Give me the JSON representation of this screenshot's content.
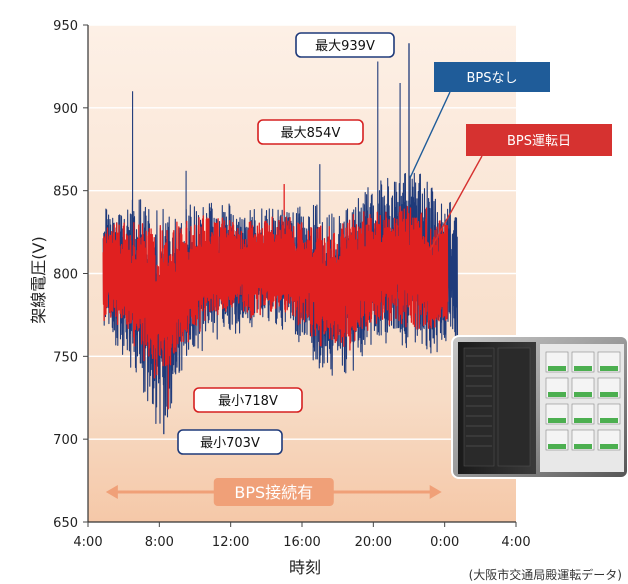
{
  "chart_data": {
    "type": "line",
    "xlabel": "時刻",
    "ylabel": "架線電圧(V)",
    "ylim": [
      650,
      950
    ],
    "yticks": [
      650,
      700,
      750,
      800,
      850,
      900,
      950
    ],
    "x_ticks": [
      "4:00",
      "8:00",
      "12:00",
      "16:00",
      "20:00",
      "0:00",
      "4:00"
    ],
    "grid": true,
    "source_note": "(大阪市交通局殿運転データ)",
    "series": [
      {
        "name": "BPSなし",
        "color": "#1f3a7a",
        "x": [
          "5:00",
          "6:00",
          "7:00",
          "8:00",
          "9:00",
          "10:00",
          "11:00",
          "12:00",
          "13:00",
          "14:00",
          "15:00",
          "16:00",
          "17:00",
          "18:00",
          "19:00",
          "20:00",
          "21:00",
          "22:00",
          "23:00",
          "0:00"
        ],
        "upper": [
          842,
          840,
          848,
          836,
          838,
          842,
          845,
          838,
          836,
          838,
          842,
          842,
          838,
          836,
          848,
          852,
          860,
          864,
          858,
          842
        ],
        "lower": [
          760,
          752,
          728,
          706,
          730,
          752,
          760,
          768,
          766,
          770,
          768,
          760,
          745,
          736,
          748,
          758,
          760,
          756,
          752,
          760
        ],
        "peak": {
          "x": "22:00",
          "y": 939
        },
        "trough": {
          "x": "8:15",
          "y": 703
        }
      },
      {
        "name": "BPS運転日",
        "color": "#e02020",
        "x": [
          "5:00",
          "6:00",
          "7:00",
          "8:00",
          "9:00",
          "10:00",
          "11:00",
          "12:00",
          "13:00",
          "14:00",
          "15:00",
          "16:00",
          "17:00",
          "18:00",
          "19:00",
          "20:00",
          "21:00",
          "22:00",
          "23:00",
          "0:00"
        ],
        "upper": [
          828,
          830,
          828,
          826,
          828,
          832,
          836,
          830,
          828,
          830,
          832,
          832,
          828,
          828,
          834,
          836,
          838,
          840,
          838,
          830
        ],
        "lower": [
          772,
          770,
          750,
          730,
          748,
          765,
          772,
          778,
          776,
          778,
          776,
          770,
          758,
          750,
          760,
          770,
          772,
          770,
          766,
          770
        ],
        "peak": {
          "x": "15:00",
          "y": 854
        },
        "trough": {
          "x": "8:30",
          "y": 718
        }
      }
    ],
    "annotations": [
      {
        "text": "最大939V",
        "style": "navy-box"
      },
      {
        "text": "最大854V",
        "style": "red-box"
      },
      {
        "text": "最小718V",
        "style": "red-box"
      },
      {
        "text": "最小703V",
        "style": "navy-box"
      }
    ],
    "legend": [
      {
        "text": "BPSなし",
        "color": "#1f5c99"
      },
      {
        "text": "BPS運転日",
        "color": "#d63230"
      }
    ],
    "band": {
      "label": "BPS接続有",
      "from": "5:00",
      "to": "23:50",
      "color": "#f0a078"
    }
  }
}
